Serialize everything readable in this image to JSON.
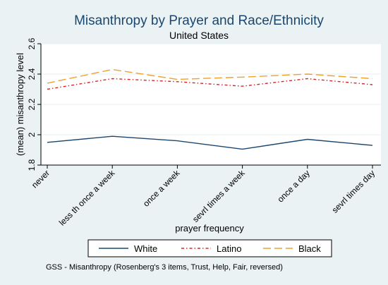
{
  "chart_data": {
    "type": "line",
    "title": "Misanthropy by Prayer and Race/Ethnicity",
    "subtitle": "United States",
    "xlabel": "prayer frequency",
    "ylabel": "(mean) misanthropy level",
    "ylim": [
      1.8,
      2.6
    ],
    "yticks": [
      "1.8",
      "2",
      "2.2",
      "2.4",
      "2.6"
    ],
    "categories": [
      "never",
      "less th once a week",
      "once a week",
      "sevrl times a week",
      "once a day",
      "sevrl times day"
    ],
    "series": [
      {
        "name": "White",
        "values": [
          1.95,
          1.99,
          1.96,
          1.905,
          1.97,
          1.93
        ],
        "color": "#1a476f",
        "dash": "solid"
      },
      {
        "name": "Latino",
        "values": [
          2.3,
          2.37,
          2.35,
          2.32,
          2.37,
          2.33
        ],
        "color": "#d62728",
        "dash": "dashdot"
      },
      {
        "name": "Black",
        "values": [
          2.34,
          2.43,
          2.365,
          2.38,
          2.4,
          2.37
        ],
        "color": "#f0a030",
        "dash": "longdash"
      }
    ],
    "grid": true,
    "legend_position": "bottom",
    "note": "GSS - Misanthropy (Rosenberg's 3 items, Trust, Help, Fair, reversed)"
  }
}
